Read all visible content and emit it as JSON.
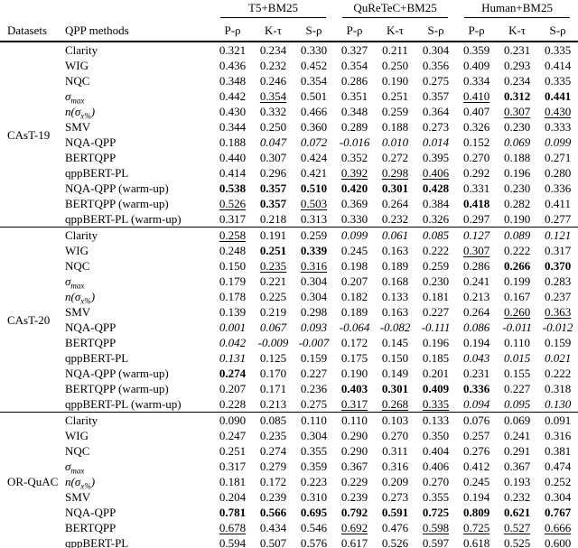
{
  "table": {
    "groups": [
      "T5+BM25",
      "QuReTeC+BM25",
      "Human+BM25"
    ],
    "left_headers": [
      "Datasets",
      "QPP methods"
    ],
    "subcolumns": [
      "P-ρ",
      "K-τ",
      "S-ρ",
      "P-ρ",
      "K-τ",
      "S-ρ",
      "P-ρ",
      "K-τ",
      "S-ρ"
    ],
    "sections": [
      {
        "dataset": "CAsT-19",
        "rows": [
          {
            "method": "Clarity",
            "values": [
              "0.321",
              "0.234",
              "0.330",
              "0.327",
              "0.211",
              "0.304",
              "0.359",
              "0.231",
              "0.335"
            ],
            "styles": [
              "",
              "",
              "",
              "",
              "",
              "",
              "",
              "",
              ""
            ]
          },
          {
            "method": "WIG",
            "values": [
              "0.436",
              "0.232",
              "0.452",
              "0.354",
              "0.250",
              "0.356",
              "0.409",
              "0.293",
              "0.414"
            ],
            "styles": [
              "",
              "",
              "",
              "",
              "",
              "",
              "",
              "",
              ""
            ]
          },
          {
            "method": "NQC",
            "values": [
              "0.348",
              "0.246",
              "0.354",
              "0.286",
              "0.190",
              "0.275",
              "0.334",
              "0.234",
              "0.335"
            ],
            "styles": [
              "",
              "",
              "",
              "",
              "",
              "",
              "",
              "",
              ""
            ]
          },
          {
            "method": "σ_{max}",
            "values": [
              "0.442",
              "0.354",
              "0.501",
              "0.351",
              "0.251",
              "0.357",
              "0.410",
              "0.312",
              "0.441"
            ],
            "styles": [
              "",
              "u",
              "",
              "",
              "",
              "",
              "u",
              "b",
              "b"
            ]
          },
          {
            "method": "n(σ_{x%})",
            "values": [
              "0.430",
              "0.332",
              "0.466",
              "0.348",
              "0.259",
              "0.364",
              "0.407",
              "0.307",
              "0.430"
            ],
            "styles": [
              "",
              "",
              "",
              "",
              "",
              "",
              "",
              "u",
              "u"
            ]
          },
          {
            "method": "SMV",
            "values": [
              "0.344",
              "0.250",
              "0.360",
              "0.289",
              "0.188",
              "0.273",
              "0.326",
              "0.230",
              "0.333"
            ],
            "styles": [
              "",
              "",
              "",
              "",
              "",
              "",
              "",
              "",
              ""
            ]
          },
          {
            "method": "NQA-QPP",
            "values": [
              "0.188",
              "0.047",
              "0.072",
              "-0.016",
              "0.010",
              "0.014",
              "0.152",
              "0.069",
              "0.099"
            ],
            "styles": [
              "",
              "i",
              "i",
              "i",
              "i",
              "i",
              "",
              "i",
              "i"
            ]
          },
          {
            "method": "BERTQPP",
            "values": [
              "0.440",
              "0.307",
              "0.424",
              "0.352",
              "0.272",
              "0.395",
              "0.270",
              "0.188",
              "0.271"
            ],
            "styles": [
              "",
              "",
              "",
              "",
              "",
              "",
              "",
              "",
              ""
            ]
          },
          {
            "method": "qppBERT-PL",
            "values": [
              "0.414",
              "0.296",
              "0.421",
              "0.392",
              "0.298",
              "0.406",
              "0.292",
              "0.196",
              "0.280"
            ],
            "styles": [
              "",
              "",
              "",
              "u",
              "u",
              "u",
              "",
              "",
              ""
            ]
          },
          {
            "method": "NQA-QPP (warm-up)",
            "values": [
              "0.538",
              "0.357",
              "0.510",
              "0.420",
              "0.301",
              "0.428",
              "0.331",
              "0.230",
              "0.336"
            ],
            "styles": [
              "b",
              "b",
              "b",
              "b",
              "b",
              "b",
              "",
              "",
              ""
            ]
          },
          {
            "method": "BERTQPP (warm-up)",
            "values": [
              "0.526",
              "0.357",
              "0.503",
              "0.369",
              "0.264",
              "0.384",
              "0.418",
              "0.282",
              "0.411"
            ],
            "styles": [
              "u",
              "b",
              "u",
              "",
              "",
              "",
              "b",
              "",
              ""
            ]
          },
          {
            "method": "qppBERT-PL (warm-up)",
            "values": [
              "0.317",
              "0.218",
              "0.313",
              "0.330",
              "0.232",
              "0.326",
              "0.297",
              "0.190",
              "0.277"
            ],
            "styles": [
              "",
              "",
              "",
              "",
              "",
              "",
              "",
              "",
              ""
            ]
          }
        ]
      },
      {
        "dataset": "CAsT-20",
        "rows": [
          {
            "method": "Clarity",
            "values": [
              "0.258",
              "0.191",
              "0.259",
              "0.099",
              "0.061",
              "0.085",
              "0.127",
              "0.089",
              "0.121"
            ],
            "styles": [
              "u",
              "",
              "",
              "i",
              "i",
              "i",
              "i",
              "i",
              "i"
            ]
          },
          {
            "method": "WIG",
            "values": [
              "0.248",
              "0.251",
              "0.339",
              "0.245",
              "0.163",
              "0.222",
              "0.307",
              "0.222",
              "0.317"
            ],
            "styles": [
              "",
              "b",
              "b",
              "",
              "",
              "",
              "u",
              "",
              ""
            ]
          },
          {
            "method": "NQC",
            "values": [
              "0.150",
              "0.235",
              "0.316",
              "0.198",
              "0.189",
              "0.259",
              "0.286",
              "0.266",
              "0.370"
            ],
            "styles": [
              "",
              "u",
              "u",
              "",
              "",
              "",
              "",
              "b",
              "b"
            ]
          },
          {
            "method": "σ_{max}",
            "values": [
              "0.179",
              "0.221",
              "0.304",
              "0.207",
              "0.168",
              "0.230",
              "0.241",
              "0.199",
              "0.283"
            ],
            "styles": [
              "",
              "",
              "",
              "",
              "",
              "",
              "",
              "",
              ""
            ]
          },
          {
            "method": "n(σ_{x%})",
            "values": [
              "0.178",
              "0.225",
              "0.304",
              "0.182",
              "0.133",
              "0.181",
              "0.213",
              "0.167",
              "0.237"
            ],
            "styles": [
              "",
              "",
              "",
              "",
              "",
              "",
              "",
              "",
              ""
            ]
          },
          {
            "method": "SMV",
            "values": [
              "0.139",
              "0.219",
              "0.298",
              "0.189",
              "0.163",
              "0.227",
              "0.264",
              "0.260",
              "0.363"
            ],
            "styles": [
              "",
              "",
              "",
              "",
              "",
              "",
              "",
              "u",
              "u"
            ]
          },
          {
            "method": "NQA-QPP",
            "values": [
              "0.001",
              "0.067",
              "0.093",
              "-0.064",
              "-0.082",
              "-0.111",
              "0.086",
              "-0.011",
              "-0.012"
            ],
            "styles": [
              "i",
              "i",
              "i",
              "i",
              "i",
              "i",
              "i",
              "i",
              "i"
            ]
          },
          {
            "method": "BERTQPP",
            "values": [
              "0.042",
              "-0.009",
              "-0.007",
              "0.172",
              "0.145",
              "0.196",
              "0.194",
              "0.110",
              "0.159"
            ],
            "styles": [
              "i",
              "i",
              "i",
              "",
              "",
              "",
              "",
              "",
              ""
            ]
          },
          {
            "method": "qppBERT-PL",
            "values": [
              "0.131",
              "0.125",
              "0.159",
              "0.175",
              "0.150",
              "0.185",
              "0.043",
              "0.015",
              "0.021"
            ],
            "styles": [
              "i",
              "",
              "",
              "",
              "",
              "",
              "i",
              "i",
              "i"
            ]
          },
          {
            "method": "NQA-QPP (warm-up)",
            "values": [
              "0.274",
              "0.170",
              "0.227",
              "0.190",
              "0.149",
              "0.201",
              "0.231",
              "0.155",
              "0.222"
            ],
            "styles": [
              "b",
              "",
              "",
              "",
              "",
              "",
              "",
              "",
              ""
            ]
          },
          {
            "method": "BERTQPP (warm-up)",
            "values": [
              "0.207",
              "0.171",
              "0.236",
              "0.403",
              "0.301",
              "0.409",
              "0.336",
              "0.227",
              "0.318"
            ],
            "styles": [
              "",
              "",
              "",
              "b",
              "b",
              "b",
              "b",
              "",
              ""
            ]
          },
          {
            "method": "qppBERT-PL (warm-up)",
            "values": [
              "0.228",
              "0.213",
              "0.275",
              "0.317",
              "0.268",
              "0.335",
              "0.094",
              "0.095",
              "0.130"
            ],
            "styles": [
              "",
              "",
              "",
              "u",
              "u",
              "u",
              "i",
              "i",
              "i"
            ]
          }
        ]
      },
      {
        "dataset": "OR-QuAC",
        "rows": [
          {
            "method": "Clarity",
            "values": [
              "0.090",
              "0.085",
              "0.110",
              "0.110",
              "0.103",
              "0.133",
              "0.076",
              "0.069",
              "0.091"
            ],
            "styles": [
              "",
              "",
              "",
              "",
              "",
              "",
              "",
              "",
              ""
            ]
          },
          {
            "method": "WIG",
            "values": [
              "0.247",
              "0.235",
              "0.304",
              "0.290",
              "0.270",
              "0.350",
              "0.257",
              "0.241",
              "0.316"
            ],
            "styles": [
              "",
              "",
              "",
              "",
              "",
              "",
              "",
              "",
              ""
            ]
          },
          {
            "method": "NQC",
            "values": [
              "0.251",
              "0.274",
              "0.355",
              "0.290",
              "0.311",
              "0.404",
              "0.276",
              "0.291",
              "0.381"
            ],
            "styles": [
              "",
              "",
              "",
              "",
              "",
              "",
              "",
              "",
              ""
            ]
          },
          {
            "method": "σ_{max}",
            "values": [
              "0.317",
              "0.279",
              "0.359",
              "0.367",
              "0.316",
              "0.406",
              "0.412",
              "0.367",
              "0.474"
            ],
            "styles": [
              "",
              "",
              "",
              "",
              "",
              "",
              "",
              "",
              ""
            ]
          },
          {
            "method": "n(σ_{x%})",
            "values": [
              "0.181",
              "0.172",
              "0.223",
              "0.229",
              "0.209",
              "0.270",
              "0.245",
              "0.193",
              "0.252"
            ],
            "styles": [
              "",
              "",
              "",
              "",
              "",
              "",
              "",
              "",
              ""
            ]
          },
          {
            "method": "SMV",
            "values": [
              "0.204",
              "0.239",
              "0.310",
              "0.239",
              "0.273",
              "0.355",
              "0.194",
              "0.232",
              "0.304"
            ],
            "styles": [
              "",
              "",
              "",
              "",
              "",
              "",
              "",
              "",
              ""
            ]
          },
          {
            "method": "NQA-QPP",
            "values": [
              "0.781",
              "0.566",
              "0.695",
              "0.792",
              "0.591",
              "0.725",
              "0.809",
              "0.621",
              "0.767"
            ],
            "styles": [
              "b",
              "b",
              "b",
              "b",
              "b",
              "b",
              "b",
              "b",
              "b"
            ]
          },
          {
            "method": "BERTQPP",
            "values": [
              "0.678",
              "0.434",
              "0.546",
              "0.692",
              "0.476",
              "0.598",
              "0.725",
              "0.527",
              "0.666"
            ],
            "styles": [
              "u",
              "",
              "",
              "u",
              "",
              "u",
              "u",
              "u",
              "u"
            ]
          },
          {
            "method": "qppBERT-PL",
            "values": [
              "0.594",
              "0.507",
              "0.576",
              "0.617",
              "0.526",
              "0.597",
              "0.618",
              "0.525",
              "0.600"
            ],
            "styles": [
              "",
              "u",
              "u",
              "",
              "u",
              "",
              "",
              "",
              ""
            ]
          }
        ]
      }
    ]
  }
}
